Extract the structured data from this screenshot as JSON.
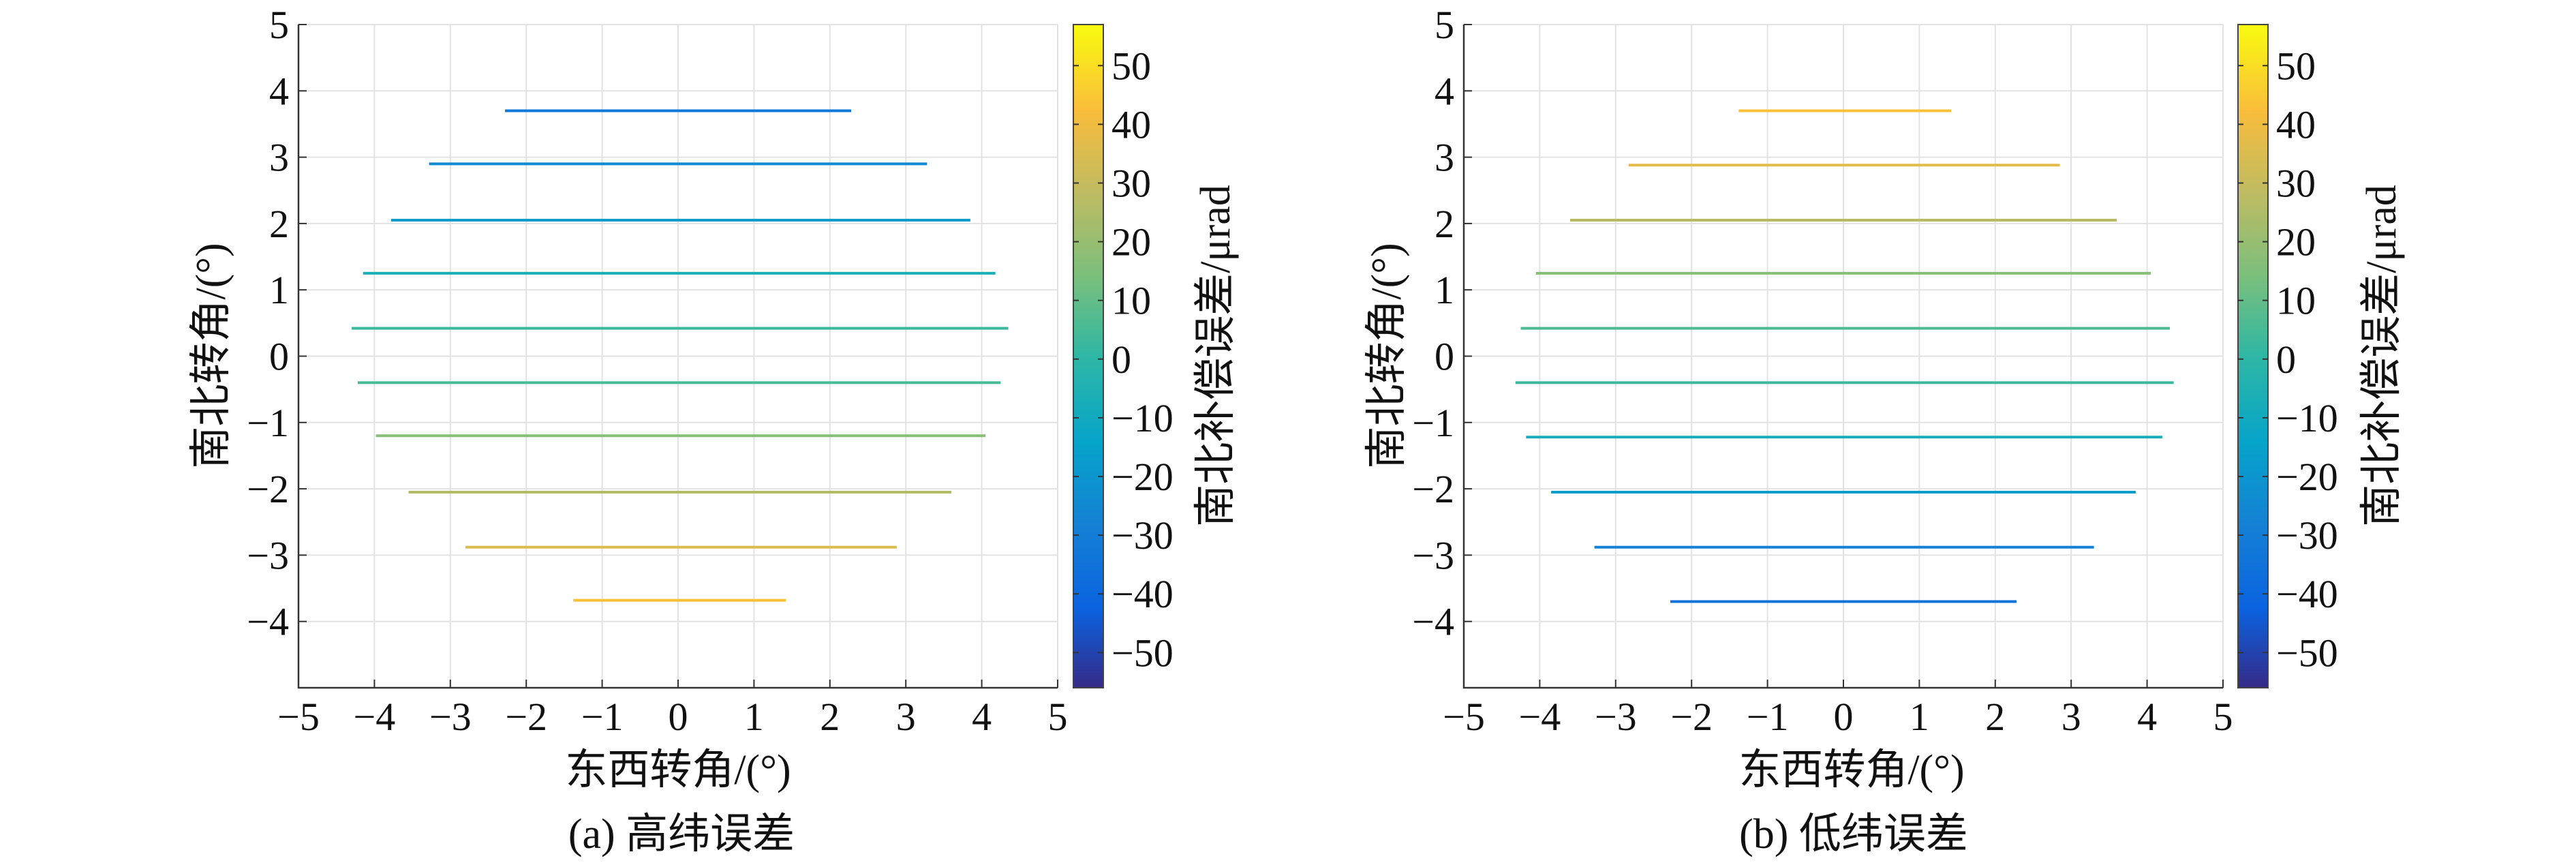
{
  "chart_data": [
    {
      "type": "line",
      "caption": "(a) 高纬误差",
      "xlabel": "东西转角/(°)",
      "ylabel": "南北转角/(°)",
      "xlim": [
        -5,
        5
      ],
      "ylim": [
        -5,
        5
      ],
      "xticks": [
        "−5",
        "−4",
        "−3",
        "−2",
        "−1",
        "0",
        "1",
        "2",
        "3",
        "4",
        "5"
      ],
      "yticks": [
        "−4",
        "−3",
        "−2",
        "−1",
        "0",
        "1",
        "2",
        "3",
        "4",
        "5"
      ],
      "grid": true,
      "colorbar": {
        "label": "南北补偿误差/μrad",
        "range": [
          -56,
          57
        ],
        "ticks": [
          "−50",
          "−40",
          "−30",
          "−20",
          "−10",
          "0",
          "10",
          "20",
          "30",
          "40",
          "50"
        ],
        "colormap": "parula"
      },
      "series": [
        {
          "y": 3.7,
          "x": [
            -2.28,
            2.28
          ],
          "value": -32
        },
        {
          "y": 2.9,
          "x": [
            -3.28,
            3.28
          ],
          "value": -25
        },
        {
          "y": 2.05,
          "x": [
            -3.78,
            3.85
          ],
          "value": -17
        },
        {
          "y": 1.25,
          "x": [
            -4.15,
            4.18
          ],
          "value": -6
        },
        {
          "y": 0.42,
          "x": [
            -4.3,
            4.35
          ],
          "value": 3
        },
        {
          "y": -0.4,
          "x": [
            -4.22,
            4.25
          ],
          "value": 5
        },
        {
          "y": -1.2,
          "x": [
            -3.98,
            4.05
          ],
          "value": 17
        },
        {
          "y": -2.05,
          "x": [
            -3.55,
            3.6
          ],
          "value": 26
        },
        {
          "y": -2.88,
          "x": [
            -2.8,
            2.88
          ],
          "value": 35
        },
        {
          "y": -3.68,
          "x": [
            -1.38,
            1.42
          ],
          "value": 43
        }
      ]
    },
    {
      "type": "line",
      "caption": "(b) 低纬误差",
      "xlabel": "东西转角/(°)",
      "ylabel": "南北转角/(°)",
      "xlim": [
        -5,
        5
      ],
      "ylim": [
        -5,
        5
      ],
      "xticks": [
        "−5",
        "−4",
        "−3",
        "−2",
        "−1",
        "0",
        "1",
        "2",
        "3",
        "4",
        "5"
      ],
      "yticks": [
        "−4",
        "−3",
        "−2",
        "−1",
        "0",
        "1",
        "2",
        "3",
        "4",
        "5"
      ],
      "grid": true,
      "colorbar": {
        "label": "南北补偿误差/μrad",
        "range": [
          -56,
          57
        ],
        "ticks": [
          "−50",
          "−40",
          "−30",
          "−20",
          "−10",
          "0",
          "10",
          "20",
          "30",
          "40",
          "50"
        ],
        "colormap": "parula"
      },
      "series": [
        {
          "y": 3.7,
          "x": [
            -1.38,
            1.42
          ],
          "value": 43
        },
        {
          "y": 2.88,
          "x": [
            -2.83,
            2.85
          ],
          "value": 37
        },
        {
          "y": 2.05,
          "x": [
            -3.6,
            3.6
          ],
          "value": 27
        },
        {
          "y": 1.25,
          "x": [
            -4.05,
            4.05
          ],
          "value": 17
        },
        {
          "y": 0.42,
          "x": [
            -4.25,
            4.3
          ],
          "value": 6
        },
        {
          "y": -0.4,
          "x": [
            -4.32,
            4.35
          ],
          "value": 3
        },
        {
          "y": -1.22,
          "x": [
            -4.18,
            4.2
          ],
          "value": -7
        },
        {
          "y": -2.05,
          "x": [
            -3.85,
            3.85
          ],
          "value": -17
        },
        {
          "y": -2.88,
          "x": [
            -3.28,
            3.3
          ],
          "value": -28
        },
        {
          "y": -3.7,
          "x": [
            -2.28,
            2.28
          ],
          "value": -35
        }
      ]
    }
  ]
}
